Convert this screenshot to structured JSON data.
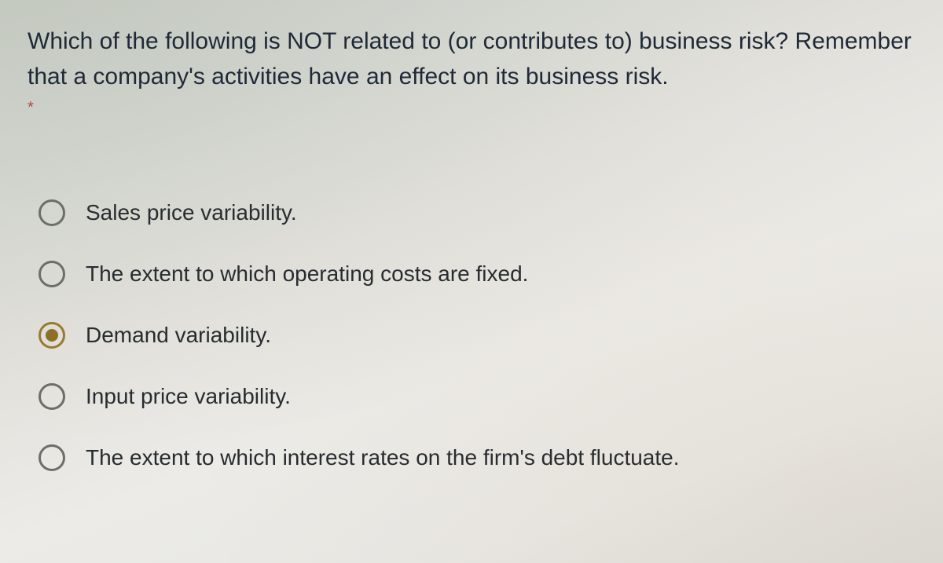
{
  "question": {
    "text": "Which of the following is NOT related to (or contributes to) business risk? Remember that a company's activities have an effect on its business risk.",
    "required_marker": "*"
  },
  "options": [
    {
      "label": "Sales price variability.",
      "selected": false
    },
    {
      "label": "The extent to which operating costs are fixed.",
      "selected": false
    },
    {
      "label": "Demand variability.",
      "selected": true
    },
    {
      "label": "Input price variability.",
      "selected": false
    },
    {
      "label": "The extent to which interest rates on the firm's debt fluctuate.",
      "selected": false
    }
  ],
  "colors": {
    "text": "#1f2937",
    "radio_border": "#6b6f68",
    "radio_selected": "#9a7a2f",
    "required": "#b24a3a"
  }
}
